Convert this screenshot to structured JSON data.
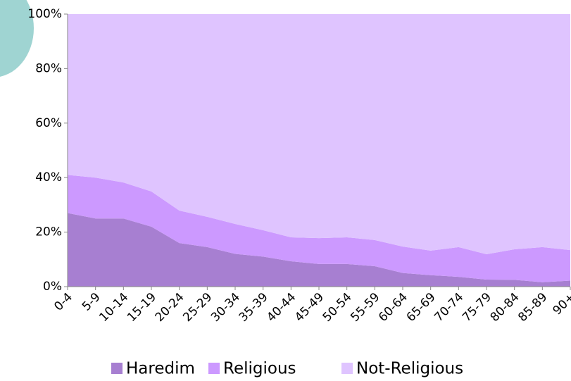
{
  "chart_data": {
    "type": "stacked_area",
    "categories": [
      "0-4",
      "5-9",
      "10-14",
      "15-19",
      "20-24",
      "25-29",
      "30-34",
      "35-39",
      "40-44",
      "45-49",
      "50-54",
      "55-59",
      "60-64",
      "65-69",
      "70-74",
      "75-79",
      "80-84",
      "85-89",
      "90+"
    ],
    "series": [
      {
        "name": "Haredim",
        "color": "#a77fd1",
        "values": [
          27,
          25,
          25,
          22,
          16,
          14.5,
          12,
          11,
          9.3,
          8.3,
          8.3,
          7.5,
          5,
          4.2,
          3.6,
          2.6,
          2.5,
          1.6,
          2.2
        ]
      },
      {
        "name": "Religious",
        "color": "#cc99ff",
        "values": [
          14,
          15,
          13.2,
          12.9,
          11.9,
          11.1,
          11,
          9.7,
          8.8,
          9.5,
          9.8,
          9.6,
          9.7,
          9,
          10.9,
          9.3,
          11.2,
          12.9,
          11.2
        ]
      },
      {
        "name": "Not-Religious",
        "color": "#dfc4ff",
        "values": [
          59,
          60,
          61.8,
          65.1,
          72.1,
          74.4,
          77,
          79.3,
          81.9,
          82.2,
          81.9,
          82.9,
          85.3,
          86.8,
          85.5,
          88.1,
          86.3,
          85.5,
          86.6
        ]
      }
    ],
    "ylim": [
      0,
      100
    ],
    "yticks": [
      {
        "value": 0,
        "label": "0%"
      },
      {
        "value": 20,
        "label": "20%"
      },
      {
        "value": 40,
        "label": "40%"
      },
      {
        "value": 60,
        "label": "60%"
      },
      {
        "value": 80,
        "label": "80%"
      },
      {
        "value": 100,
        "label": "100%"
      }
    ],
    "legend": "bottom"
  }
}
